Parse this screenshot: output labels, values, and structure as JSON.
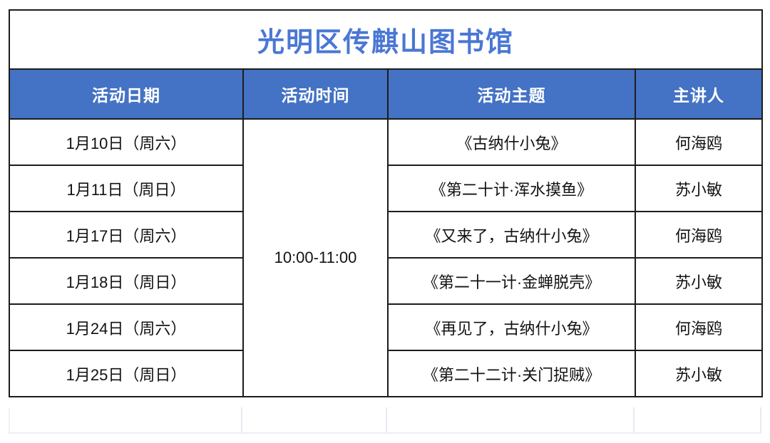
{
  "table": {
    "title": "光明区传麒山图书馆",
    "headers": [
      "活动日期",
      "活动时间",
      "活动主题",
      "主讲人"
    ],
    "time": "10:00-11:00",
    "rows": [
      {
        "date": "1月10日（周六）",
        "theme": "《古纳什小兔》",
        "speaker": "何海鸥"
      },
      {
        "date": "1月11日（周日）",
        "theme": "《第二十计·浑水摸鱼》",
        "speaker": "苏小敏"
      },
      {
        "date": "1月17日（周六）",
        "theme": "《又来了，古纳什小兔》",
        "speaker": "何海鸥"
      },
      {
        "date": "1月18日（周日）",
        "theme": "《第二十一计·金蝉脱壳》",
        "speaker": "苏小敏"
      },
      {
        "date": "1月24日（周六）",
        "theme": "《再见了，古纳什小兔》",
        "speaker": "何海鸥"
      },
      {
        "date": "1月25日（周日）",
        "theme": "《第二十二计·关门捉贼》",
        "speaker": "苏小敏"
      }
    ],
    "colors": {
      "header_bg": "#4472c4",
      "header_text": "#ffffff",
      "title_text": "#4a77d4",
      "border": "#1c1c1c"
    }
  }
}
